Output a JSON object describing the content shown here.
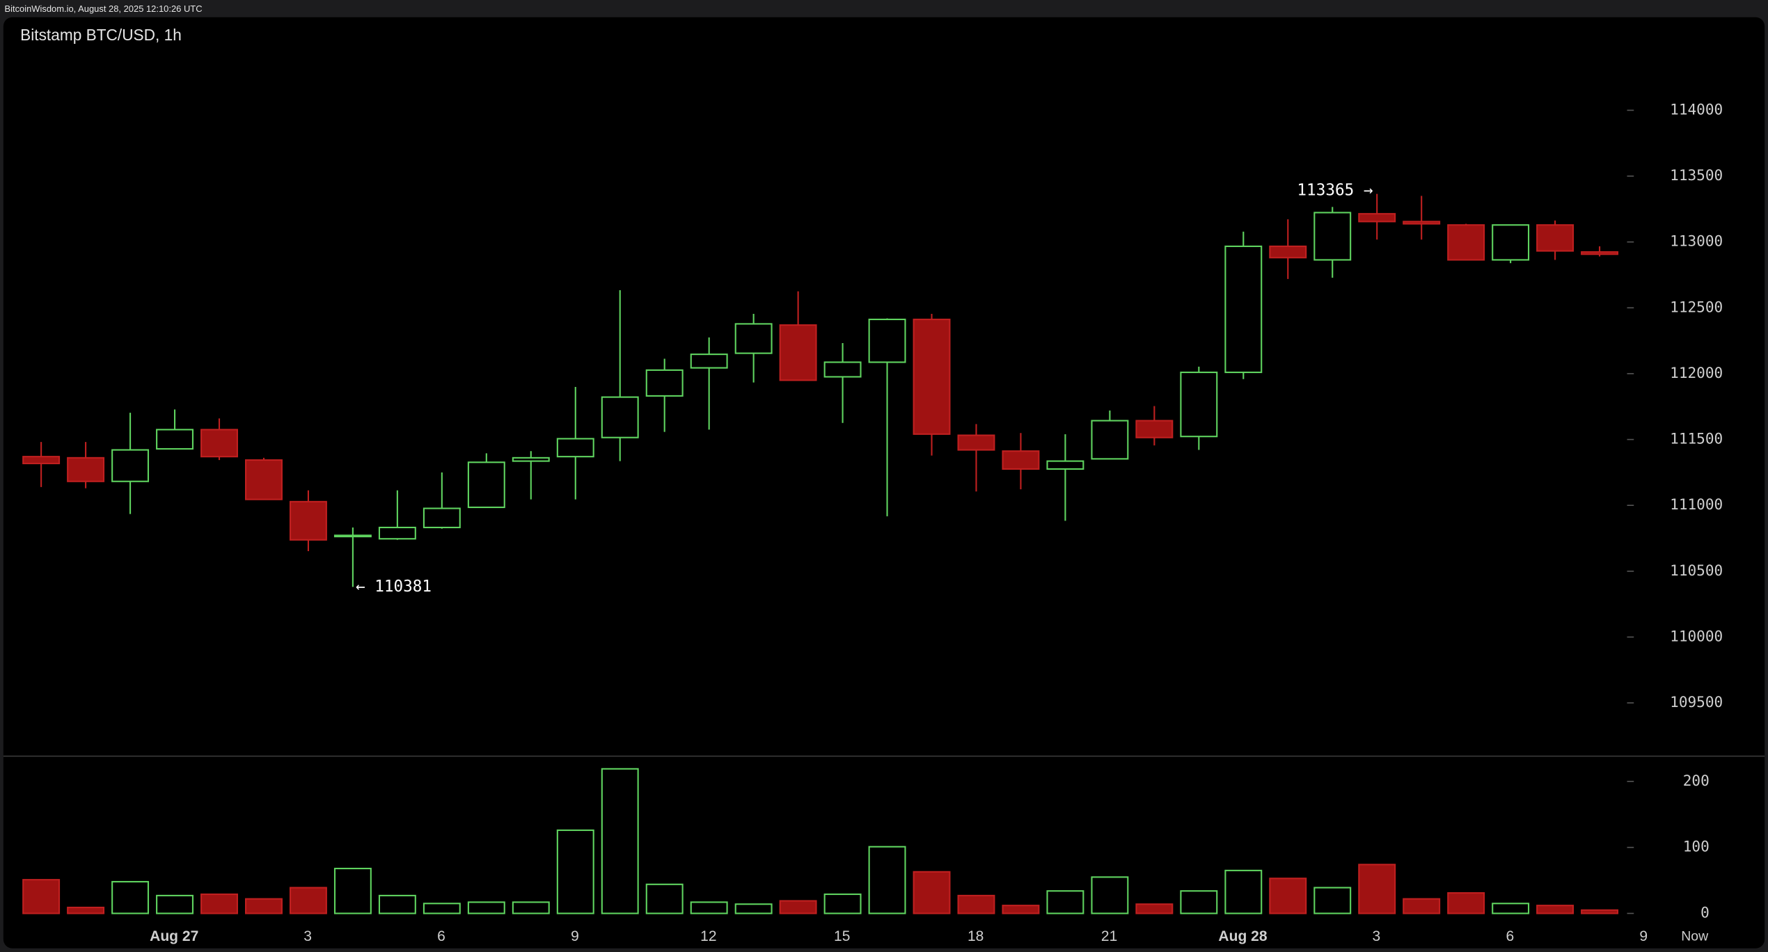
{
  "chart_data": {
    "type": "candlestick",
    "source": "BitcoinWisdom.io, August 28, 2025 12:10:26 UTC",
    "title": "Bitstamp BTC/USD, 1h",
    "categories": [
      null,
      null,
      null,
      "Aug 27",
      null,
      null,
      "3",
      null,
      null,
      "6",
      null,
      null,
      "9",
      null,
      null,
      "12",
      null,
      null,
      "15",
      null,
      null,
      "18",
      null,
      null,
      "21",
      null,
      null,
      "Aug 28",
      null,
      null,
      "3",
      null,
      null,
      "6",
      null,
      null
    ],
    "extra_x_labels": [
      "9",
      "Now"
    ],
    "open": [
      111370,
      111361,
      111182,
      111429,
      111575,
      111344,
      111028,
      110763,
      110746,
      110832,
      110985,
      111336,
      111370,
      111515,
      111831,
      112044,
      112155,
      112369,
      111976,
      112087,
      112412,
      111532,
      111412,
      111276,
      111353,
      111643,
      111523,
      112010,
      112967,
      112864,
      113214,
      113155,
      113129,
      112864,
      113129,
      112924
    ],
    "high": [
      111481,
      111481,
      111703,
      111728,
      111660,
      111361,
      111114,
      110832,
      111114,
      111250,
      111395,
      111412,
      111899,
      112634,
      112113,
      112275,
      112454,
      112625,
      112232,
      112420,
      112454,
      111617,
      111549,
      111540,
      111720,
      111754,
      112053,
      113078,
      113172,
      113266,
      113365,
      113350,
      113138,
      113129,
      113163,
      112967
    ],
    "low": [
      111139,
      111130,
      110934,
      111429,
      111344,
      111045,
      110652,
      110381,
      110738,
      110823,
      110985,
      111045,
      111045,
      111336,
      111558,
      111575,
      111933,
      111950,
      111626,
      110917,
      111378,
      111105,
      111122,
      110883,
      111353,
      111455,
      111421,
      111959,
      112719,
      112728,
      113018,
      113018,
      112864,
      112839,
      112864,
      112890
    ],
    "close": [
      111318,
      111182,
      111421,
      111575,
      111370,
      111045,
      110738,
      110772,
      110832,
      110977,
      111327,
      111361,
      111506,
      111822,
      112027,
      112147,
      112378,
      111950,
      112087,
      112412,
      111541,
      111421,
      111276,
      111336,
      111643,
      111515,
      112010,
      112967,
      112881,
      113223,
      113155,
      113138,
      112864,
      113129,
      112932,
      112907
    ],
    "up_color": "#5fd35f",
    "down_color": "#a01212",
    "ylim": [
      109100,
      114450
    ],
    "yticks": [
      109500,
      110000,
      110500,
      111000,
      111500,
      112000,
      112500,
      113000,
      113500,
      114000
    ],
    "annotations": [
      {
        "text": "113365 →",
        "at": "high"
      },
      {
        "text": "← 110381",
        "at": "low"
      }
    ],
    "volume": {
      "values": [
        51,
        9,
        48,
        27,
        29,
        22,
        39,
        68,
        27,
        15,
        17,
        17,
        126,
        219,
        44,
        17,
        14,
        19,
        29,
        101,
        63,
        27,
        12,
        34,
        55,
        14,
        34,
        65,
        53,
        39,
        74,
        22,
        31,
        15,
        12,
        5
      ],
      "ylim": [
        0,
        234
      ],
      "yticks": [
        0,
        100,
        200
      ]
    }
  }
}
